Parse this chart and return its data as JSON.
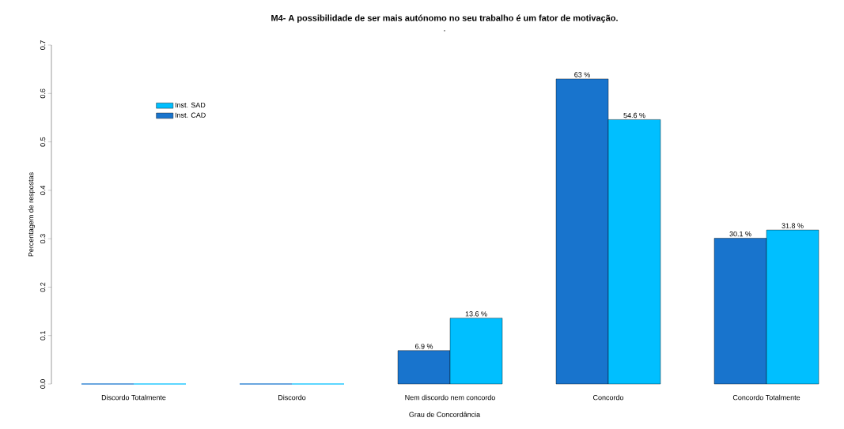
{
  "chart_data": {
    "type": "bar",
    "title": "M4- A possibilidade de ser mais autónomo no seu trabalho é um fator de motivação.",
    "subtitle": ".",
    "xlabel": "Grau de Concordância",
    "ylabel": "Percentagem de respostas",
    "categories": [
      "Discordo Totalmente",
      "Discordo",
      "Nem discordo nem concordo",
      "Concordo",
      "Concordo Totalmente"
    ],
    "series": [
      {
        "name": "Inst. CAD",
        "color": "#1874cd",
        "values": [
          0,
          0,
          0.069,
          0.63,
          0.301
        ],
        "value_labels": [
          null,
          null,
          "6.9 %",
          "63 %",
          "30.1 %"
        ]
      },
      {
        "name": "Inst. SAD",
        "color": "#00bfff",
        "values": [
          0,
          0,
          0.136,
          0.546,
          0.318
        ],
        "value_labels": [
          null,
          null,
          "13.6 %",
          "54.6 %",
          "31.8 %"
        ]
      }
    ],
    "ylim": [
      0,
      0.7
    ],
    "yticks": [
      {
        "value": 0,
        "label": "0.0"
      },
      0.1,
      0.2,
      0.3,
      0.4,
      0.5,
      0.6,
      0.7
    ],
    "grid": false,
    "legend": "top left"
  }
}
